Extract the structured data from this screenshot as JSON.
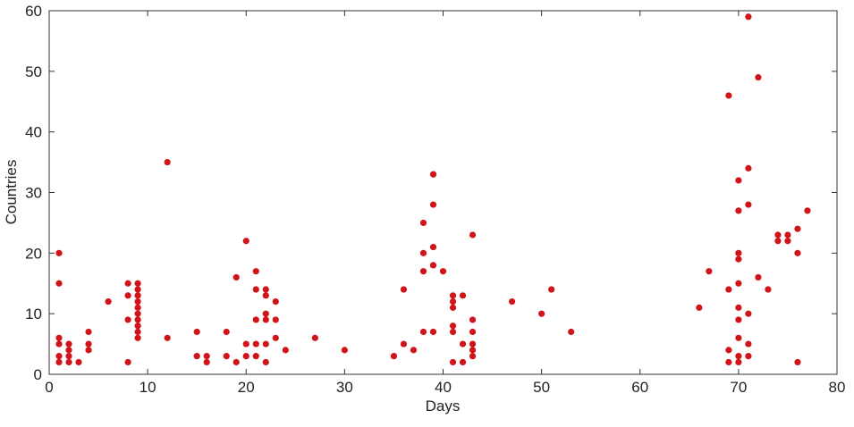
{
  "chart_data": {
    "type": "scatter",
    "x_label": "Days",
    "y_label": "Countries",
    "color": "#d0141a",
    "x": [
      1,
      1,
      1,
      1,
      1,
      1,
      2,
      2,
      2,
      2,
      3,
      4,
      4,
      4,
      6,
      8,
      8,
      8,
      8,
      9,
      9,
      9,
      9,
      9,
      9,
      9,
      9,
      9,
      9,
      12,
      12,
      15,
      15,
      16,
      16,
      18,
      18,
      19,
      19,
      20,
      20,
      20,
      21,
      21,
      21,
      21,
      21,
      22,
      22,
      22,
      22,
      22,
      22,
      23,
      23,
      23,
      24,
      27,
      30,
      35,
      36,
      36,
      37,
      38,
      38,
      38,
      38,
      39,
      39,
      39,
      39,
      39,
      40,
      41,
      41,
      41,
      41,
      41,
      41,
      42,
      42,
      42,
      43,
      43,
      43,
      43,
      43,
      43,
      47,
      50,
      51,
      53,
      66,
      67,
      69,
      69,
      69,
      69,
      70,
      70,
      70,
      70,
      70,
      70,
      70,
      70,
      70,
      70,
      71,
      71,
      71,
      71,
      71,
      71,
      72,
      72,
      73,
      74,
      74,
      75,
      75,
      76,
      76,
      76,
      77
    ],
    "y": [
      20,
      15,
      6,
      5,
      3,
      2,
      5,
      4,
      3,
      2,
      2,
      7,
      5,
      4,
      12,
      15,
      13,
      9,
      2,
      15,
      14,
      13,
      12,
      11,
      10,
      9,
      8,
      7,
      6,
      35,
      6,
      7,
      3,
      3,
      2,
      7,
      3,
      16,
      2,
      22,
      5,
      3,
      17,
      14,
      9,
      5,
      3,
      14,
      13,
      10,
      9,
      5,
      2,
      12,
      9,
      6,
      4,
      6,
      4,
      3,
      14,
      5,
      4,
      25,
      20,
      17,
      7,
      33,
      28,
      21,
      18,
      7,
      17,
      13,
      12,
      11,
      8,
      7,
      2,
      13,
      5,
      2,
      23,
      9,
      7,
      5,
      4,
      3,
      12,
      10,
      14,
      7,
      11,
      17,
      46,
      14,
      4,
      2,
      32,
      27,
      20,
      19,
      15,
      11,
      9,
      6,
      3,
      2,
      59,
      34,
      28,
      10,
      5,
      3,
      49,
      16,
      14,
      23,
      22,
      23,
      22,
      24,
      20,
      2,
      27
    ],
    "xlim": [
      0,
      80
    ],
    "xticks": [
      0,
      10,
      20,
      30,
      40,
      50,
      60,
      70,
      80
    ],
    "ylim": [
      0,
      60
    ],
    "yticks": [
      0,
      10,
      20,
      30,
      40,
      50,
      60
    ]
  }
}
